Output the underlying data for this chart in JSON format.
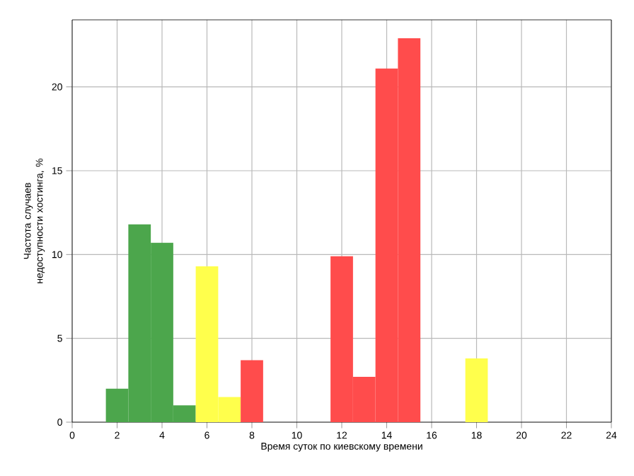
{
  "chart_data": {
    "type": "histogram",
    "xlabel": "Время суток по киевскому времени",
    "ylabel": "Частота случаев недоступности хостинга, %",
    "bins": [
      1.5,
      2.5,
      3.5,
      4.5,
      5.5,
      6.5,
      7.5,
      8.5,
      9.5,
      10.5,
      11.5,
      12.5,
      13.5,
      14.5,
      15.5,
      16.5,
      17.5,
      18.5
    ],
    "values": [
      2.0,
      11.8,
      10.7,
      1.0,
      9.3,
      1.5,
      3.7,
      0,
      0,
      0,
      9.9,
      2.7,
      21.1,
      22.9,
      0,
      0,
      3.8
    ],
    "colors": [
      "#4ca64c",
      "#4ca64c",
      "#4ca64c",
      "#4ca64c",
      "#ffff4c",
      "#ffff4c",
      "#ff4c4c",
      "#ff4c4c",
      "#ff4c4c",
      "#ff4c4c",
      "#ff4c4c",
      "#ff4c4c",
      "#ff4c4c",
      "#ff4c4c",
      "#ff4c4c",
      "#ffff4c",
      "#ffff4c"
    ],
    "xlim": [
      0,
      24
    ],
    "ylim": [
      0,
      24
    ],
    "xticks": [
      0,
      2,
      4,
      6,
      8,
      10,
      12,
      14,
      16,
      18,
      20,
      22,
      24
    ],
    "yticks": [
      0,
      5,
      10,
      15,
      20
    ],
    "grid": true
  }
}
